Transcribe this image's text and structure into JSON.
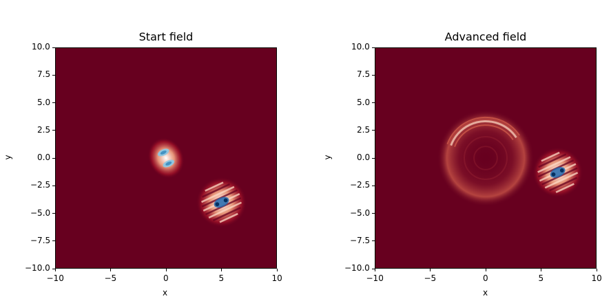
{
  "chart_data": [
    {
      "type": "heatmap",
      "title": "Start field",
      "xlabel": "x",
      "ylabel": "y",
      "xlim": [
        -10,
        10
      ],
      "ylim": [
        -10,
        10
      ],
      "xticks": [
        "−10",
        "−5",
        "0",
        "5",
        "10"
      ],
      "yticks": [
        "10.0",
        "7.5",
        "5.0",
        "2.5",
        "0.0",
        "−2.5",
        "−5.0",
        "−7.5",
        "−10.0"
      ],
      "background_color": "#67001f",
      "features": [
        {
          "kind": "dipole-blob",
          "center": [
            0,
            0
          ],
          "spread": 1.0
        },
        {
          "kind": "striped-packet",
          "center": [
            5,
            -4
          ],
          "spread": 1.2
        }
      ]
    },
    {
      "type": "heatmap",
      "title": "Advanced field",
      "xlabel": "x",
      "ylabel": "y",
      "xlim": [
        -10,
        10
      ],
      "ylim": [
        -10,
        10
      ],
      "xticks": [
        "−10",
        "−5",
        "0",
        "5",
        "10"
      ],
      "yticks": [
        "10.0",
        "7.5",
        "5.0",
        "2.5",
        "0.0",
        "−2.5",
        "−5.0",
        "−7.5",
        "−10.0"
      ],
      "background_color": "#67001f",
      "features": [
        {
          "kind": "ring-wave",
          "center": [
            0,
            0
          ],
          "radius": 3.5
        },
        {
          "kind": "striped-packet",
          "center": [
            6.5,
            -1.3
          ],
          "spread": 1.2
        }
      ]
    }
  ]
}
